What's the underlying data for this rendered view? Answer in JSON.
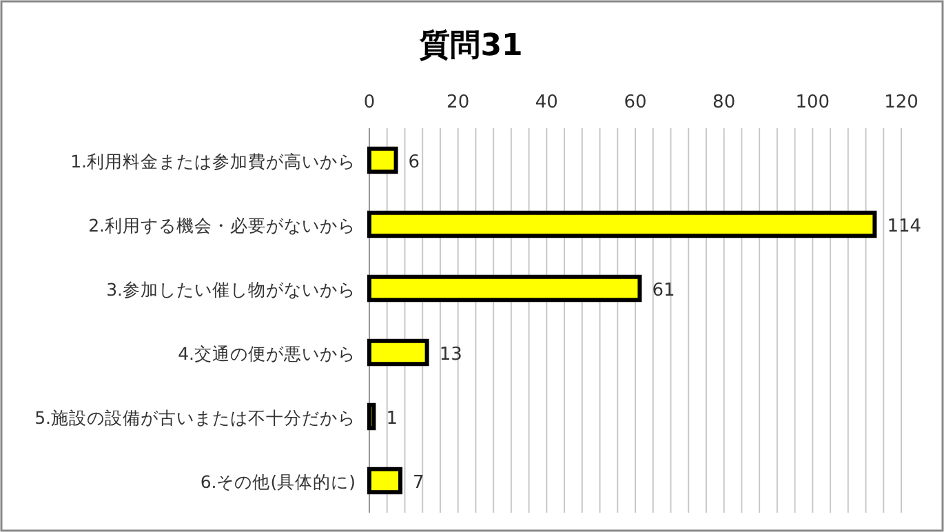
{
  "chart_data": {
    "type": "bar",
    "orientation": "horizontal",
    "title": "質問31",
    "categories": [
      "1.利用料金または参加費が高いから",
      "2.利用する機会・必要がないから",
      "3.参加したい催し物がないから",
      "4.交通の便が悪いから",
      "5.施設の設備が古いまたは不十分だから",
      "6.その他(具体的に)"
    ],
    "series": [
      {
        "color": "#ffff00",
        "values": [
          6,
          114,
          61,
          13,
          1,
          7
        ]
      }
    ],
    "xlim": [
      0,
      120
    ],
    "xticks": [
      0,
      {
        "value": 4,
        "label": null
      },
      {
        "value": 8,
        "label": null
      },
      {
        "value": 12,
        "label": null
      },
      {
        "value": 16,
        "label": null
      },
      20,
      {
        "value": 24,
        "label": null
      },
      {
        "value": 28,
        "label": null
      },
      {
        "value": 32,
        "label": null
      },
      {
        "value": 36,
        "label": null
      },
      40,
      {
        "value": 44,
        "label": null
      },
      {
        "value": 48,
        "label": null
      },
      {
        "value": 52,
        "label": null
      },
      {
        "value": 56,
        "label": null
      },
      60,
      {
        "value": 64,
        "label": null
      },
      {
        "value": 68,
        "label": null
      },
      {
        "value": 72,
        "label": null
      },
      {
        "value": 76,
        "label": null
      },
      80,
      {
        "value": 84,
        "label": null
      },
      {
        "value": 88,
        "label": null
      },
      {
        "value": 92,
        "label": null
      },
      {
        "value": 96,
        "label": null
      },
      100,
      {
        "value": 104,
        "label": null
      },
      {
        "value": 108,
        "label": null
      },
      {
        "value": 112,
        "label": null
      },
      {
        "value": 116,
        "label": null
      },
      120
    ],
    "grid": true,
    "data_labels": true
  }
}
